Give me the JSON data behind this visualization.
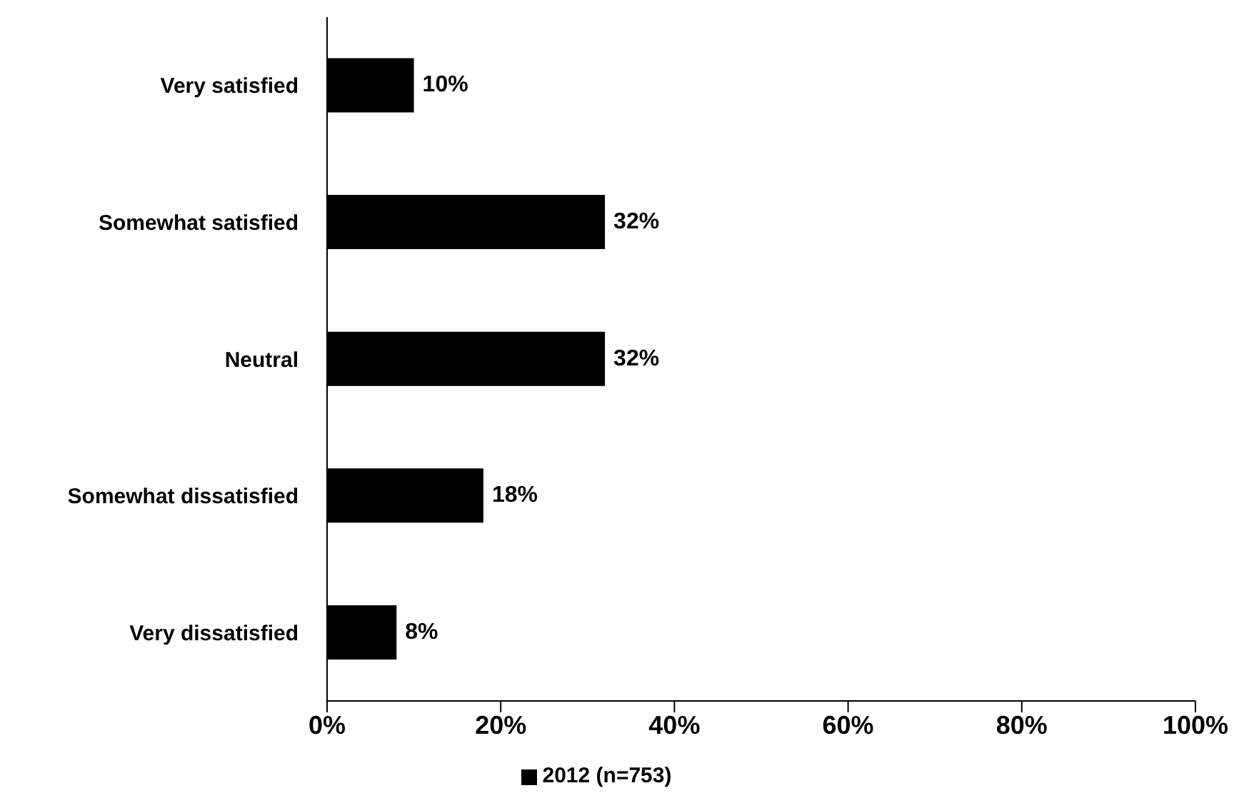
{
  "chart_data": {
    "type": "bar",
    "orientation": "horizontal",
    "categories": [
      "Very satisfied",
      "Somewhat satisfied",
      "Neutral",
      "Somewhat dissatisfied",
      "Very dissatisfied"
    ],
    "series": [
      {
        "name": "2012 (n=753)",
        "color": "#000000",
        "values": [
          10,
          32,
          32,
          18,
          8
        ],
        "value_labels": [
          "10%",
          "32%",
          "32%",
          "18%",
          "8%"
        ]
      }
    ],
    "xlim": [
      0,
      100
    ],
    "xticks": [
      {
        "value": 0,
        "label": "0%"
      },
      {
        "value": 20,
        "label": "20%"
      },
      {
        "value": 40,
        "label": "40%"
      },
      {
        "value": 60,
        "label": "60%"
      },
      {
        "value": 80,
        "label": "80%"
      },
      {
        "value": 100,
        "label": "100%"
      }
    ],
    "grid": false,
    "legend": "bottom"
  }
}
